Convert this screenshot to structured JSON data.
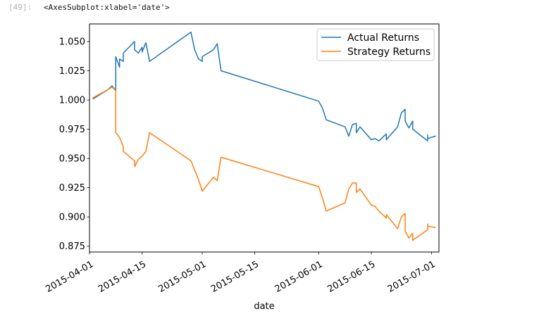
{
  "cell": {
    "prompt": "[49]:",
    "output_repr": "<AxesSubplot:xlabel='date'>"
  },
  "chart_data": {
    "type": "line",
    "title": "",
    "xlabel": "date",
    "ylabel": "",
    "x_axis_type": "date",
    "xlim": [
      "2015-04-01",
      "2015-07-03"
    ],
    "ylim": [
      0.87,
      1.065
    ],
    "grid": false,
    "legend_placement": "top-right",
    "x_ticks": [
      {
        "date": "2015-04-01",
        "label": "2015-04-01"
      },
      {
        "date": "2015-04-15",
        "label": "2015-04-15"
      },
      {
        "date": "2015-05-01",
        "label": "2015-05-01"
      },
      {
        "date": "2015-05-15",
        "label": "2015-05-15"
      },
      {
        "date": "2015-06-01",
        "label": "2015-06-01"
      },
      {
        "date": "2015-06-15",
        "label": "2015-06-15"
      },
      {
        "date": "2015-07-01",
        "label": "2015-07-01"
      }
    ],
    "y_ticks": [
      {
        "value": 0.875,
        "label": "0.875"
      },
      {
        "value": 0.9,
        "label": "0.900"
      },
      {
        "value": 0.925,
        "label": "0.925"
      },
      {
        "value": 0.95,
        "label": "0.950"
      },
      {
        "value": 0.975,
        "label": "0.975"
      },
      {
        "value": 1.0,
        "label": "1.000"
      },
      {
        "value": 1.025,
        "label": "1.025"
      },
      {
        "value": 1.05,
        "label": "1.050"
      }
    ],
    "series": [
      {
        "name": "Actual Returns",
        "color": "#1f77b4",
        "points": [
          [
            "2015-04-02",
            1.001
          ],
          [
            "2015-04-06",
            1.009
          ],
          [
            "2015-04-07",
            1.012
          ],
          [
            "2015-04-08",
            1.008
          ],
          [
            "2015-04-08",
            1.037
          ],
          [
            "2015-04-09",
            1.028
          ],
          [
            "2015-04-09",
            1.035
          ],
          [
            "2015-04-10",
            1.033
          ],
          [
            "2015-04-10",
            1.04
          ],
          [
            "2015-04-13",
            1.05
          ],
          [
            "2015-04-13",
            1.043
          ],
          [
            "2015-04-14",
            1.04
          ],
          [
            "2015-04-15",
            1.045
          ],
          [
            "2015-04-15",
            1.041
          ],
          [
            "2015-04-16",
            1.049
          ],
          [
            "2015-04-17",
            1.033
          ],
          [
            "2015-04-28",
            1.058
          ],
          [
            "2015-04-29",
            1.043
          ],
          [
            "2015-04-30",
            1.035
          ],
          [
            "2015-05-01",
            1.033
          ],
          [
            "2015-05-01",
            1.037
          ],
          [
            "2015-05-04",
            1.043
          ],
          [
            "2015-05-05",
            1.048
          ],
          [
            "2015-05-06",
            1.025
          ],
          [
            "2015-06-01",
            0.999
          ],
          [
            "2015-06-02",
            0.993
          ],
          [
            "2015-06-03",
            0.983
          ],
          [
            "2015-06-08",
            0.977
          ],
          [
            "2015-06-09",
            0.969
          ],
          [
            "2015-06-10",
            0.979
          ],
          [
            "2015-06-11",
            0.98
          ],
          [
            "2015-06-11",
            0.972
          ],
          [
            "2015-06-12",
            0.977
          ],
          [
            "2015-06-15",
            0.966
          ],
          [
            "2015-06-16",
            0.967
          ],
          [
            "2015-06-17",
            0.965
          ],
          [
            "2015-06-19",
            0.971
          ],
          [
            "2015-06-19",
            0.966
          ],
          [
            "2015-06-22",
            0.977
          ],
          [
            "2015-06-23",
            0.989
          ],
          [
            "2015-06-24",
            0.992
          ],
          [
            "2015-06-24",
            0.982
          ],
          [
            "2015-06-25",
            0.976
          ],
          [
            "2015-06-26",
            0.982
          ],
          [
            "2015-06-26",
            0.975
          ],
          [
            "2015-06-30",
            0.965
          ],
          [
            "2015-06-30",
            0.97
          ],
          [
            "2015-06-30",
            0.967
          ],
          [
            "2015-07-02",
            0.969
          ]
        ]
      },
      {
        "name": "Strategy Returns",
        "color": "#ff7f0e",
        "points": [
          [
            "2015-04-02",
            1.002
          ],
          [
            "2015-04-06",
            1.009
          ],
          [
            "2015-04-07",
            1.011
          ],
          [
            "2015-04-08",
            1.008
          ],
          [
            "2015-04-08",
            0.984
          ],
          [
            "2015-04-08",
            0.972
          ],
          [
            "2015-04-09",
            0.968
          ],
          [
            "2015-04-10",
            0.96
          ],
          [
            "2015-04-10",
            0.956
          ],
          [
            "2015-04-13",
            0.948
          ],
          [
            "2015-04-13",
            0.943
          ],
          [
            "2015-04-14",
            0.949
          ],
          [
            "2015-04-15",
            0.952
          ],
          [
            "2015-04-16",
            0.956
          ],
          [
            "2015-04-17",
            0.972
          ],
          [
            "2015-04-28",
            0.948
          ],
          [
            "2015-04-30",
            0.932
          ],
          [
            "2015-05-01",
            0.922
          ],
          [
            "2015-05-04",
            0.934
          ],
          [
            "2015-05-05",
            0.931
          ],
          [
            "2015-05-06",
            0.951
          ],
          [
            "2015-06-01",
            0.926
          ],
          [
            "2015-06-02",
            0.916
          ],
          [
            "2015-06-03",
            0.905
          ],
          [
            "2015-06-08",
            0.912
          ],
          [
            "2015-06-09",
            0.924
          ],
          [
            "2015-06-10",
            0.929
          ],
          [
            "2015-06-11",
            0.929
          ],
          [
            "2015-06-11",
            0.921
          ],
          [
            "2015-06-12",
            0.924
          ],
          [
            "2015-06-15",
            0.91
          ],
          [
            "2015-06-16",
            0.909
          ],
          [
            "2015-06-17",
            0.905
          ],
          [
            "2015-06-19",
            0.899
          ],
          [
            "2015-06-19",
            0.902
          ],
          [
            "2015-06-22",
            0.89
          ],
          [
            "2015-06-23",
            0.9
          ],
          [
            "2015-06-24",
            0.903
          ],
          [
            "2015-06-24",
            0.888
          ],
          [
            "2015-06-25",
            0.882
          ],
          [
            "2015-06-26",
            0.886
          ],
          [
            "2015-06-26",
            0.88
          ],
          [
            "2015-06-30",
            0.889
          ],
          [
            "2015-06-30",
            0.894
          ],
          [
            "2015-06-30",
            0.892
          ],
          [
            "2015-07-02",
            0.891
          ]
        ]
      }
    ]
  }
}
